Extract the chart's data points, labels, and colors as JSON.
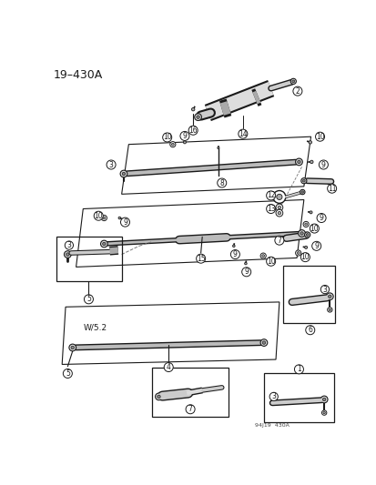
{
  "title": "19–430A",
  "watermark": "94J19  430A",
  "bg": "#ffffff",
  "lc": "#1a1a1a",
  "gray1": "#999999",
  "gray2": "#cccccc",
  "gray3": "#555555"
}
